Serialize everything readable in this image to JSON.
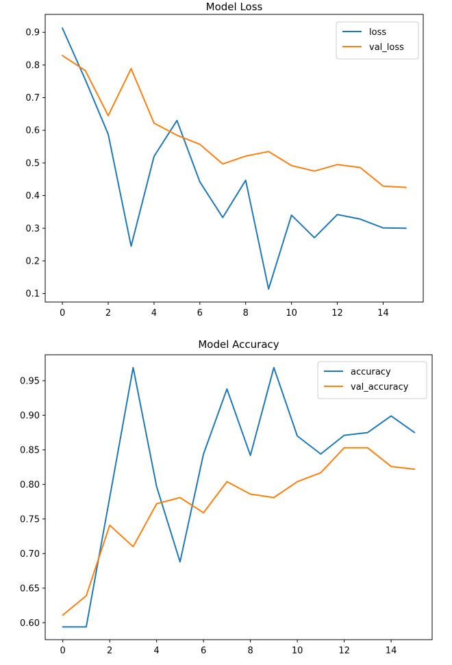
{
  "chart_data": [
    {
      "type": "line",
      "title": "Model Loss",
      "xlabel": "",
      "ylabel": "",
      "x": [
        0,
        1,
        2,
        3,
        4,
        5,
        6,
        7,
        8,
        9,
        10,
        11,
        12,
        13,
        14,
        15
      ],
      "xticks": [
        0,
        2,
        4,
        6,
        8,
        10,
        12,
        14
      ],
      "yticks": [
        0.1,
        0.2,
        0.3,
        0.4,
        0.5,
        0.6,
        0.7,
        0.8,
        0.9
      ],
      "ytick_labels": [
        "0.1",
        "0.2",
        "0.3",
        "0.4",
        "0.5",
        "0.6",
        "0.7",
        "0.8",
        "0.9"
      ],
      "xlim": [
        -0.75,
        15.75
      ],
      "ylim": [
        0.074,
        0.955
      ],
      "grid": false,
      "legend_position": "top-right",
      "series": [
        {
          "name": "loss",
          "color": "#1f77b4",
          "values": [
            0.913,
            0.755,
            0.588,
            0.245,
            0.52,
            0.63,
            0.442,
            0.333,
            0.447,
            0.114,
            0.34,
            0.271,
            0.342,
            0.328,
            0.301,
            0.3
          ]
        },
        {
          "name": "val_loss",
          "color": "#ff7f0e",
          "values": [
            0.829,
            0.783,
            0.645,
            0.789,
            0.622,
            0.585,
            0.557,
            0.497,
            0.521,
            0.535,
            0.492,
            0.475,
            0.495,
            0.486,
            0.429,
            0.425
          ]
        }
      ]
    },
    {
      "type": "line",
      "title": "Model Accuracy",
      "xlabel": "",
      "ylabel": "",
      "x": [
        0,
        1,
        2,
        3,
        4,
        5,
        6,
        7,
        8,
        9,
        10,
        11,
        12,
        13,
        14,
        15
      ],
      "xticks": [
        0,
        2,
        4,
        6,
        8,
        10,
        12,
        14
      ],
      "yticks": [
        0.6,
        0.65,
        0.7,
        0.75,
        0.8,
        0.85,
        0.9,
        0.95
      ],
      "ytick_labels": [
        "0.60",
        "0.65",
        "0.70",
        "0.75",
        "0.80",
        "0.85",
        "0.90",
        "0.95"
      ],
      "xlim": [
        -0.75,
        15.75
      ],
      "ylim": [
        0.5755,
        0.9875
      ],
      "grid": false,
      "legend_position": "top-right",
      "series": [
        {
          "name": "accuracy",
          "color": "#1f77b4",
          "values": [
            0.594,
            0.594,
            0.781,
            0.969,
            0.797,
            0.688,
            0.844,
            0.938,
            0.842,
            0.969,
            0.87,
            0.844,
            0.871,
            0.875,
            0.899,
            0.875
          ]
        },
        {
          "name": "val_accuracy",
          "color": "#ff7f0e",
          "values": [
            0.611,
            0.639,
            0.741,
            0.71,
            0.772,
            0.781,
            0.759,
            0.804,
            0.786,
            0.781,
            0.804,
            0.817,
            0.853,
            0.853,
            0.826,
            0.822
          ]
        }
      ]
    }
  ]
}
